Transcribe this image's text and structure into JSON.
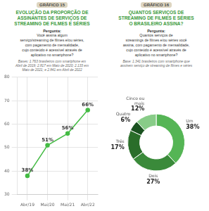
{
  "chart_data": [
    {
      "type": "line",
      "title": [
        "EVOLUÇÃO DA PROPORÇÃO DE",
        "ASSINANTES DE SERVIÇOS DE",
        "STREAMING DE FILMES E SÉRIES"
      ],
      "annotations": [
        "GRÁFICO 15",
        "Pergunta:",
        "Você assina algum\nserviço/streaming de filmes e/ou séries,\ncom pagamento de mensalidade,\ncujo conteúdo é acessível através de\naplicativo no smartphone?",
        "Bases: 1.763 brasileiros com smartphone em\nAbril de 2019; 2.817 em Maio de 2020; 2.133 em\nMaio de 2021; e 2.841 em Abril de 2022"
      ],
      "categories": [
        "Abr/19",
        "Mai/20",
        "Mai/21",
        "Abr/22"
      ],
      "values": [
        38,
        51,
        56,
        66
      ],
      "value_labels": [
        "38%",
        "51%",
        "56%",
        "66%"
      ],
      "color": "#44bb44",
      "marker": "o",
      "ylim": [
        30,
        80
      ],
      "yticks": [
        30,
        40,
        50,
        60,
        70,
        80
      ],
      "grid": true,
      "data_labels": true
    },
    {
      "type": "doughnut",
      "title": [
        "QUANTOS SERVIÇOS DE",
        "STREAMING DE FILMES E SÉRIES",
        "O BRASILEIRO ASSINA?"
      ],
      "annotations": [
        "GRÁFICO 16",
        "Pergunta:",
        "Quantos serviços de\nstreamings de filmes e/ou séries você\nassina, com pagamento de mensalidade,\ncujo conteúdo é acessível através de\naplicativo no smartphone?",
        "Base: 1.341 brasileiros com smartphone que\nassinem serviço de streaming de filmes e séries"
      ],
      "categories": [
        "Um",
        "Dois",
        "Três",
        "Quatro",
        "Cinco ou\nmais"
      ],
      "values": [
        38,
        27,
        17,
        6,
        12
      ],
      "value_labels": [
        "38%",
        "27%",
        "17%",
        "6%",
        "12%"
      ],
      "colors": [
        "#55b555",
        "#3a8a3a",
        "#2a6e2a",
        "#1a5220",
        "#88cc88"
      ],
      "data_labels": true
    }
  ]
}
